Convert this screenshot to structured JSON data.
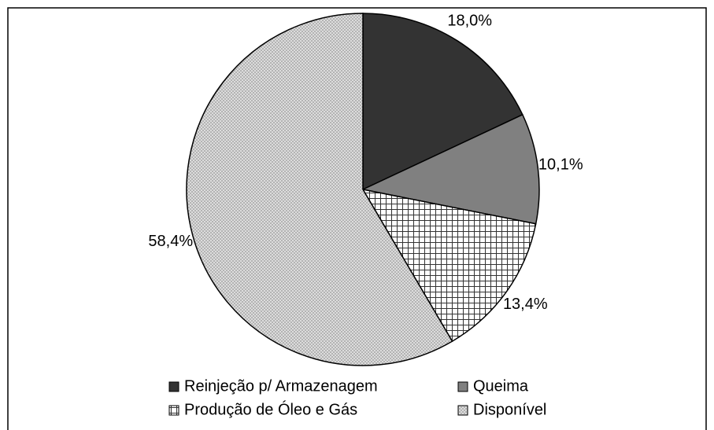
{
  "chart_data": {
    "type": "pie",
    "categories": [
      "Reinjeção p/ Armazenagem",
      "Queima",
      "Produção de Óleo e Gás",
      "Disponível"
    ],
    "values": [
      18.0,
      10.1,
      13.4,
      58.4
    ],
    "value_labels": [
      "18,0%",
      "10,1%",
      "13,4%",
      "58,4%"
    ],
    "colors": [
      "#333333",
      "#808080",
      "#ffffff",
      "#e2e2e2"
    ],
    "patterns": [
      null,
      null,
      "grid",
      "crosshatch"
    ],
    "legend": "bottom"
  }
}
